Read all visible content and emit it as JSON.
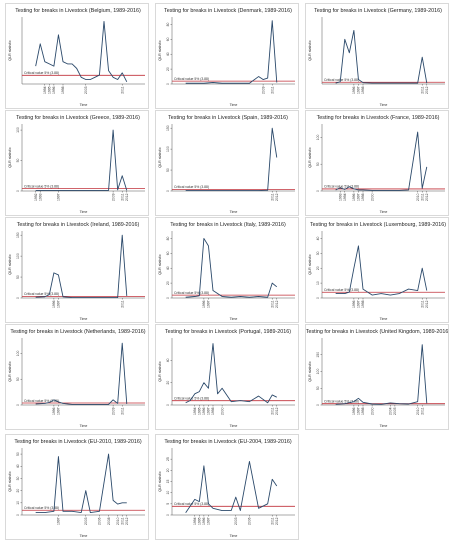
{
  "chart_data": [
    {
      "type": "line",
      "title": "Testing for breaks in Livestock (Belgium, 1989-2016)",
      "ylabel": "QLR statistic",
      "xlabel": "Time",
      "critical_label": "Critical value 5% (3.88)",
      "critical": 3.88,
      "ylim": [
        0,
        30
      ],
      "yticks": [],
      "xlim": [
        1989,
        2016
      ],
      "xtick_labels": [
        "1994",
        "1995",
        "1996",
        "1998",
        "2003",
        "2011"
      ],
      "x": [
        1992,
        1993,
        1994,
        1995,
        1996,
        1997,
        1998,
        1999,
        2000,
        2001,
        2002,
        2003,
        2004,
        2005,
        2006,
        2007,
        2008,
        2009,
        2010,
        2011,
        2012
      ],
      "series": [
        {
          "values": [
            8,
            18,
            10,
            9,
            8,
            22,
            10,
            9,
            9,
            7,
            3,
            2,
            2,
            3,
            4,
            28,
            6,
            3,
            2,
            5,
            1
          ]
        }
      ]
    },
    {
      "type": "line",
      "title": "Testing for breaks in Livestock (Denmark, 1989-2016)",
      "ylabel": "QLR statistic",
      "xlabel": "Time",
      "critical_label": "Critical value 5% (3.88)",
      "critical": 3.88,
      "ylim": [
        0,
        90
      ],
      "yticks": [
        0,
        20,
        40,
        60,
        80
      ],
      "xlim": [
        1989,
        2016
      ],
      "xtick_labels": [
        "2009",
        "2011"
      ],
      "x": [
        1992,
        1994,
        1996,
        1998,
        2000,
        2002,
        2004,
        2006,
        2008,
        2009,
        2010,
        2011,
        2012
      ],
      "series": [
        {
          "values": [
            1,
            1,
            1,
            2,
            1,
            1,
            1,
            1,
            10,
            6,
            8,
            85,
            2
          ]
        }
      ]
    },
    {
      "type": "line",
      "title": "Testing for breaks in Livestock (Germany, 1989-2016)",
      "ylabel": "QLR statistic",
      "xlabel": "Time",
      "critical_label": "Critical value 5% (3.88)",
      "critical": 3.88,
      "ylim": [
        0,
        150
      ],
      "yticks": [],
      "xlim": [
        1989,
        2016
      ],
      "xtick_labels": [
        "1996",
        "1997",
        "1998",
        "2011",
        "2012"
      ],
      "x": [
        1992,
        1993,
        1994,
        1995,
        1996,
        1997,
        1998,
        2000,
        2002,
        2004,
        2006,
        2008,
        2010,
        2011,
        2012
      ],
      "series": [
        {
          "values": [
            2,
            5,
            100,
            70,
            120,
            10,
            3,
            2,
            2,
            2,
            2,
            2,
            2,
            60,
            2
          ]
        }
      ]
    },
    {
      "type": "line",
      "title": "Testing for breaks in Livestock (Greece, 1989-2016)",
      "ylabel": "QLR statistic",
      "xlabel": "Time",
      "critical_label": "Critical value 5% (3.88)",
      "critical": 3.88,
      "ylim": [
        0,
        110
      ],
      "yticks": [
        0,
        50,
        100
      ],
      "xlim": [
        1989,
        2016
      ],
      "xtick_labels": [
        "1992",
        "1993",
        "1997",
        "2009",
        "2011",
        "2012"
      ],
      "x": [
        1992,
        1994,
        1996,
        1998,
        2000,
        2002,
        2004,
        2006,
        2008,
        2009,
        2010,
        2011,
        2012
      ],
      "series": [
        {
          "values": [
            1,
            1,
            1,
            1,
            1,
            1,
            1,
            1,
            1,
            100,
            2,
            25,
            1
          ]
        }
      ]
    },
    {
      "type": "line",
      "title": "Testing for breaks in Livestock (Spain, 1989-2016)",
      "ylabel": "QLR statistic",
      "xlabel": "Time",
      "critical_label": "Critical value 5% (3.88)",
      "critical": 3.88,
      "ylim": [
        0,
        160
      ],
      "yticks": [
        0,
        50,
        100,
        150
      ],
      "xlim": [
        1989,
        2016
      ],
      "xtick_labels": [
        "2011",
        "2012"
      ],
      "x": [
        1992,
        1994,
        1996,
        1998,
        2000,
        2002,
        2004,
        2006,
        2008,
        2010,
        2011,
        2012
      ],
      "series": [
        {
          "values": [
            1,
            1,
            1,
            1,
            1,
            1,
            1,
            1,
            1,
            2,
            150,
            80
          ]
        }
      ]
    },
    {
      "type": "line",
      "title": "Testing for breaks in Livestock (France, 1989-2016)",
      "ylabel": "QLR statistic",
      "xlabel": "Time",
      "critical_label": "Critical value 5% (3.88)",
      "critical": 3.88,
      "ylim": [
        0,
        125
      ],
      "yticks": [
        0,
        50,
        100
      ],
      "xlim": [
        1989,
        2016
      ],
      "xtick_labels": [
        "1993",
        "1994",
        "1996",
        "1997",
        "1998",
        "2000",
        "2010",
        "2011",
        "2012"
      ],
      "x": [
        1992,
        1993,
        1994,
        1995,
        1996,
        1997,
        1998,
        2000,
        2002,
        2004,
        2006,
        2008,
        2010,
        2011,
        2012
      ],
      "series": [
        {
          "values": [
            2,
            6,
            3,
            8,
            4,
            2,
            2,
            1,
            1,
            1,
            1,
            2,
            110,
            5,
            45
          ]
        }
      ]
    },
    {
      "type": "line",
      "title": "Testing for breaks in Livestock (Ireland, 1989-2016)",
      "ylabel": "QLR statistic",
      "xlabel": "Time",
      "critical_label": "Critical value 5% (3.88)",
      "critical": 3.88,
      "ylim": [
        0,
        160
      ],
      "yticks": [
        0,
        50,
        100,
        150
      ],
      "xlim": [
        1989,
        2016
      ],
      "xtick_labels": [
        "1996",
        "1997",
        "2011"
      ],
      "x": [
        1992,
        1994,
        1995,
        1996,
        1997,
        1998,
        2000,
        2002,
        2004,
        2006,
        2008,
        2010,
        2011,
        2012
      ],
      "series": [
        {
          "values": [
            2,
            3,
            8,
            60,
            55,
            3,
            1,
            1,
            1,
            1,
            1,
            1,
            150,
            5
          ]
        }
      ]
    },
    {
      "type": "line",
      "title": "Testing for breaks in Livestock (Italy, 1989-2016)",
      "ylabel": "QLR statistic",
      "xlabel": "Time",
      "critical_label": "Critical value 5% (3.88)",
      "critical": 3.88,
      "ylim": [
        0,
        90
      ],
      "yticks": [
        0,
        20,
        40,
        60,
        80
      ],
      "xlim": [
        1989,
        2016
      ],
      "xtick_labels": [
        "1996",
        "1997",
        "2011",
        "2012"
      ],
      "x": [
        1992,
        1994,
        1995,
        1996,
        1997,
        1998,
        2000,
        2002,
        2004,
        2006,
        2008,
        2010,
        2011,
        2012
      ],
      "series": [
        {
          "values": [
            1,
            2,
            3,
            80,
            70,
            10,
            2,
            1,
            2,
            1,
            2,
            1,
            20,
            15
          ]
        }
      ]
    },
    {
      "type": "line",
      "title": "Testing for breaks in Livestock (Luxembourg, 1989-2016)",
      "ylabel": "QLR statistic",
      "xlabel": "Time",
      "critical_label": "Critical value 5% (3.88)",
      "critical": 3.88,
      "ylim": [
        0,
        45
      ],
      "yticks": [
        0,
        10,
        20,
        30,
        40
      ],
      "xlim": [
        1989,
        2016
      ],
      "xtick_labels": [
        "1996",
        "1997",
        "1998",
        "2011",
        "2012"
      ],
      "x": [
        1992,
        1994,
        1995,
        1996,
        1997,
        1998,
        2000,
        2002,
        2004,
        2006,
        2008,
        2010,
        2011,
        2012
      ],
      "series": [
        {
          "values": [
            3,
            3,
            4,
            20,
            35,
            6,
            2,
            3,
            2,
            3,
            6,
            5,
            20,
            5
          ]
        }
      ]
    },
    {
      "type": "line",
      "title": "Testing for breaks in Livestock (Netherlands, 1989-2016)",
      "ylabel": "QLR statistic",
      "xlabel": "Time",
      "critical_label": "Critical value 5% (3.88)",
      "critical": 3.88,
      "ylim": [
        0,
        130
      ],
      "yticks": [
        0,
        50,
        100
      ],
      "xlim": [
        1989,
        2016
      ],
      "xtick_labels": [
        "1996",
        "1997",
        "2009",
        "2011"
      ],
      "x": [
        1992,
        1994,
        1995,
        1996,
        1997,
        1998,
        2000,
        2002,
        2004,
        2006,
        2008,
        2009,
        2010,
        2011,
        2012
      ],
      "series": [
        {
          "values": [
            2,
            3,
            5,
            10,
            6,
            3,
            1,
            1,
            1,
            1,
            1,
            10,
            3,
            120,
            2
          ]
        }
      ]
    },
    {
      "type": "line",
      "title": "Testing for breaks in Livestock (Portugal, 1989-2016)",
      "ylabel": "QLR statistic",
      "xlabel": "Time",
      "critical_label": "Critical value 5% (3.88)",
      "critical": 3.88,
      "ylim": [
        0,
        60
      ],
      "yticks": [
        0,
        20,
        40
      ],
      "xlim": [
        1989,
        2016
      ],
      "xtick_labels": [
        "1994",
        "1995",
        "1996",
        "1997",
        "1998",
        "2000",
        "2011",
        "2012"
      ],
      "x": [
        1992,
        1993,
        1994,
        1995,
        1996,
        1997,
        1998,
        1999,
        2000,
        2002,
        2004,
        2006,
        2008,
        2010,
        2011,
        2012
      ],
      "series": [
        {
          "values": [
            2,
            4,
            10,
            12,
            20,
            15,
            55,
            10,
            15,
            3,
            4,
            3,
            8,
            2,
            9,
            7
          ]
        }
      ]
    },
    {
      "type": "line",
      "title": "Testing for breaks in Livestock (United Kingdom, 1989-2016)",
      "ylabel": "QLR statistic",
      "xlabel": "Time",
      "critical_label": "Critical value 5% (3.88)",
      "critical": 3.88,
      "ylim": [
        0,
        200
      ],
      "yticks": [
        0,
        50,
        100,
        150
      ],
      "xlim": [
        1989,
        2016
      ],
      "xtick_labels": [
        "1996",
        "1997",
        "1998",
        "2000",
        "2004",
        "2005",
        "2010",
        "2011"
      ],
      "x": [
        1992,
        1994,
        1996,
        1997,
        1998,
        2000,
        2002,
        2004,
        2005,
        2006,
        2008,
        2010,
        2011,
        2012
      ],
      "series": [
        {
          "values": [
            2,
            4,
            10,
            20,
            8,
            3,
            2,
            6,
            5,
            4,
            3,
            10,
            180,
            5
          ]
        }
      ]
    },
    {
      "type": "line",
      "title": "Testing for breaks in Livestock (EU-2010, 1989-2016)",
      "ylabel": "QLR statistic",
      "xlabel": "Time",
      "critical_label": "Critical value 5% (3.88)",
      "critical": 3.88,
      "ylim": [
        0,
        55
      ],
      "yticks": [
        0,
        10,
        20,
        30,
        40,
        50
      ],
      "xlim": [
        1989,
        2016
      ],
      "xtick_labels": [
        "1997",
        "2003",
        "2006",
        "2008",
        "2010",
        "2011",
        "2012"
      ],
      "x": [
        1992,
        1994,
        1996,
        1997,
        1998,
        2000,
        2002,
        2003,
        2004,
        2006,
        2008,
        2009,
        2010,
        2011,
        2012
      ],
      "series": [
        {
          "values": [
            2,
            2,
            3,
            48,
            3,
            3,
            2,
            20,
            2,
            3,
            50,
            12,
            9,
            10,
            10
          ]
        }
      ]
    },
    {
      "type": "line",
      "title": "Testing for breaks in Livestock (EU-2004, 1989-2016)",
      "ylabel": "QLR statistic",
      "xlabel": "Time",
      "critical_label": "Critical value 5% (3.88)",
      "critical": 3.88,
      "ylim": [
        0,
        30
      ],
      "yticks": [
        0,
        5,
        10,
        15,
        20,
        25
      ],
      "xlim": [
        1989,
        2016
      ],
      "xtick_labels": [
        "1994",
        "1995",
        "1996",
        "1997",
        "2003",
        "2006",
        "2011",
        "2012"
      ],
      "x": [
        1992,
        1994,
        1995,
        1996,
        1997,
        1998,
        2000,
        2002,
        2003,
        2004,
        2006,
        2008,
        2010,
        2011,
        2012
      ],
      "series": [
        {
          "values": [
            1,
            7,
            6,
            22,
            5,
            3,
            2,
            2,
            8,
            2,
            24,
            3,
            5,
            16,
            13
          ]
        }
      ]
    }
  ]
}
